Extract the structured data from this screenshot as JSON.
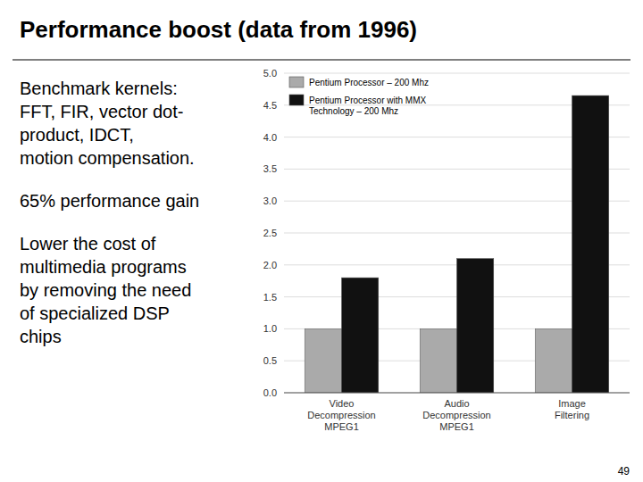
{
  "chart_data": {
    "type": "bar",
    "title": "Performance boost (data from 1996)",
    "categories": [
      "Video\nDecompression\nMPEG1",
      "Audio\nDecompression\nMPEG1",
      "Image\nFiltering"
    ],
    "series": [
      {
        "name": "Pentium Processor – 200 Mhz",
        "color": "#aaaaaa",
        "values": [
          1.0,
          1.0,
          1.0
        ]
      },
      {
        "name": "Pentium Processor with MMX\nTechnology – 200 Mhz",
        "color": "#111111",
        "values": [
          1.8,
          2.1,
          4.65
        ]
      }
    ],
    "ylim": [
      0,
      5
    ],
    "yticks": [
      {
        "value": 0,
        "label": "0.0"
      },
      {
        "value": 0.5,
        "label": "0.5"
      },
      {
        "value": 1,
        "label": "1.0"
      },
      {
        "value": 1.5,
        "label": "1.5"
      },
      {
        "value": 2,
        "label": "2.0"
      },
      {
        "value": 2.5,
        "label": "2.5"
      },
      {
        "value": 3,
        "label": "3.0"
      },
      {
        "value": 3.5,
        "label": "3.5"
      },
      {
        "value": 4,
        "label": "4.0"
      },
      {
        "value": 4.5,
        "label": "4.5"
      },
      {
        "value": 5,
        "label": "5.0"
      }
    ],
    "grid": true,
    "legend": "top-left",
    "annotations": [
      "Benchmark kernels:\nFFT, FIR, vector dot-\nproduct, IDCT,\nmotion compensation.",
      "65% performance gain",
      "Lower the cost of\nmultimedia programs\nby removing the need\nof specialized DSP\nchips",
      "49"
    ]
  }
}
